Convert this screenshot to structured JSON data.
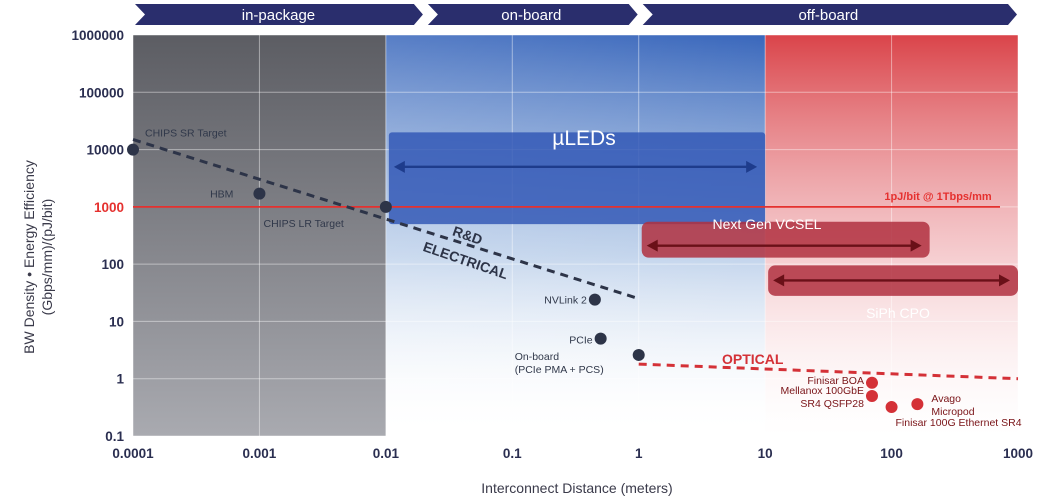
{
  "chart_data": {
    "type": "scatter",
    "xlabel": "Interconnect Distance (meters)",
    "ylabel_lines": [
      "BW Density • Energy Efficiency",
      "(Gbps/mm)/(pJ/bit)"
    ],
    "x_scale": "log",
    "y_scale": "log",
    "xlim": [
      0.0001,
      1000
    ],
    "ylim": [
      0.1,
      1000000
    ],
    "x_ticks": [
      {
        "value": 0.0001,
        "label": "0.0001"
      },
      {
        "value": 0.001,
        "label": "0.001"
      },
      {
        "value": 0.01,
        "label": "0.01"
      },
      {
        "value": 0.1,
        "label": "0.1"
      },
      {
        "value": 1,
        "label": "1"
      },
      {
        "value": 10,
        "label": "10"
      },
      {
        "value": 100,
        "label": "100"
      },
      {
        "value": 1000,
        "label": "1000"
      }
    ],
    "y_ticks": [
      {
        "value": 0.1,
        "label": "0.1"
      },
      {
        "value": 1,
        "label": "1"
      },
      {
        "value": 10,
        "label": "10"
      },
      {
        "value": 100,
        "label": "100"
      },
      {
        "value": 1000,
        "label": "1000",
        "highlight": true
      },
      {
        "value": 10000,
        "label": "10000"
      },
      {
        "value": 100000,
        "label": "100000"
      },
      {
        "value": 1000000,
        "label": "1000000"
      }
    ],
    "grid": true,
    "regions": [
      {
        "label": "in-package",
        "x0": 0.0001,
        "x1": 0.01,
        "color": "#5e5f66"
      },
      {
        "label": "on-board",
        "x0": 0.01,
        "x1": 10,
        "color": "#2f5fb8"
      },
      {
        "label": "off-board",
        "x0": 10,
        "x1": 1000,
        "color": "#d83a40"
      }
    ],
    "header_bands": [
      {
        "label": "in-package",
        "x0": 0.0001,
        "x1": 0.02
      },
      {
        "label": "on-board",
        "x0": 0.02,
        "x1": 1
      },
      {
        "label": "off-board",
        "x0": 1,
        "x1": 1000
      }
    ],
    "reference_line": {
      "y": 1000,
      "label": "1pJ/bit @ 1Tbps/mm",
      "color": "#e5312f"
    },
    "points": [
      {
        "x": 0.0001,
        "y": 10000,
        "label": "CHIPS SR Target",
        "color": "#2d3448"
      },
      {
        "x": 0.001,
        "y": 1700,
        "label": "HBM",
        "color": "#2d3448"
      },
      {
        "x": 0.01,
        "y": 1000,
        "label": "CHIPS LR Target",
        "color": "#2d3448"
      },
      {
        "x": 0.45,
        "y": 24,
        "label": "NVLink 2",
        "color": "#2d3448"
      },
      {
        "x": 0.5,
        "y": 5,
        "label": "PCIe",
        "color": "#2d3448"
      },
      {
        "x": 1,
        "y": 2.6,
        "label": "On-board",
        "label2": "(PCIe  PMA + PCS)",
        "color": "#2d3448"
      },
      {
        "x": 70,
        "y": 0.85,
        "label": "Finisar BOA",
        "color": "#d43137"
      },
      {
        "x": 70,
        "y": 0.5,
        "label": "Mellanox 100GbE",
        "label2": "SR4 QSFP28",
        "color": "#d43137"
      },
      {
        "x": 100,
        "y": 0.32,
        "label": "Finisar 100G Ethernet SR4",
        "color": "#d43137"
      },
      {
        "x": 160,
        "y": 0.36,
        "label": "Avago",
        "label2": "Micropod",
        "color": "#d43137"
      }
    ],
    "trend_lines": [
      {
        "label": "ELECTRICAL",
        "label2": "R&D",
        "from": [
          0.0001,
          15000
        ],
        "to": [
          1,
          25
        ],
        "color": "#2d3448"
      },
      {
        "label": "OPTICAL",
        "from": [
          1,
          1.8
        ],
        "to": [
          1000,
          1
        ],
        "color": "#d43137"
      }
    ],
    "technology_bands": [
      {
        "label": "µLEDs",
        "x0": 0.01,
        "x1": 10,
        "y0": 500,
        "y1": 20000,
        "arrow_y": 5000,
        "color": "#2f55b4"
      },
      {
        "label": "Next Gen VCSEL",
        "x0": 1,
        "x1": 200,
        "y0": 130,
        "y1": 550,
        "arrow_y": 210,
        "color": "#b03040"
      },
      {
        "label": "SiPh CPO",
        "x0": 10,
        "x1": 1000,
        "y0": 28,
        "y1": 95,
        "arrow_y": 52,
        "color": "#b03040"
      }
    ]
  }
}
